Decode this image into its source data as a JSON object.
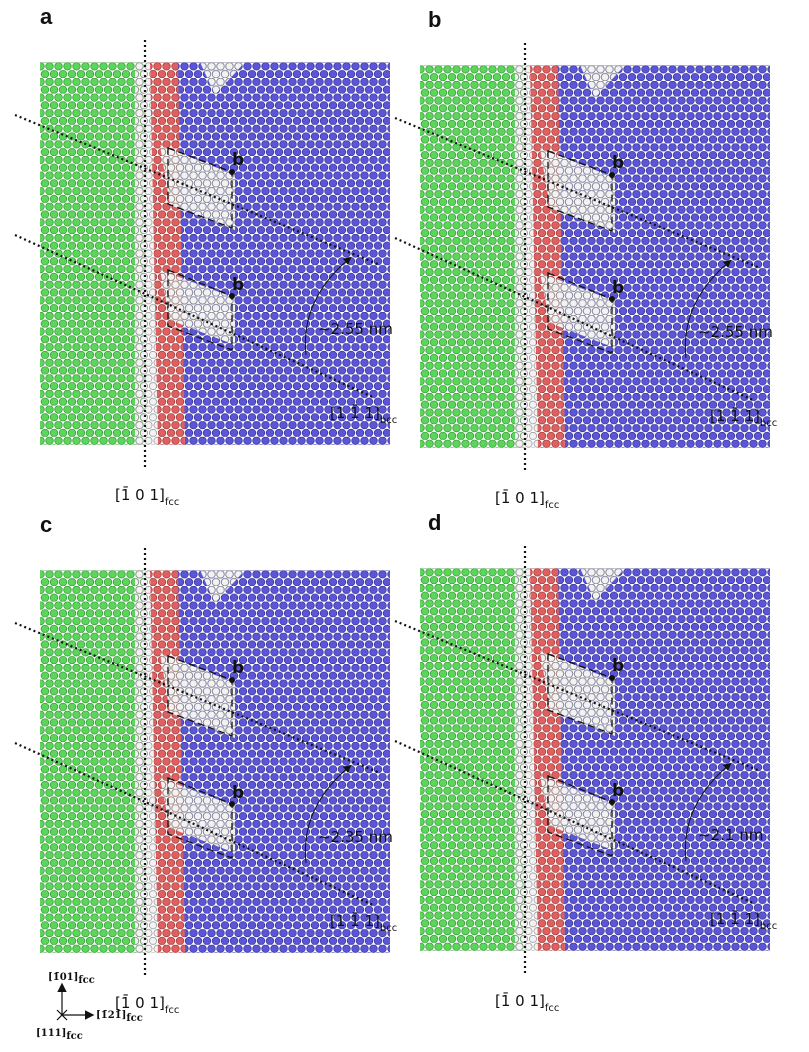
{
  "panels": [
    {
      "label": "a",
      "burgers": [
        "b",
        "b"
      ],
      "distance": "~2.55 nm",
      "direction_bcc": {
        "text": "[1 1̄ 1]",
        "sub": "bcc"
      },
      "direction_fcc": {
        "text": "[1̄ 0 1]",
        "sub": "fcc"
      }
    },
    {
      "label": "b",
      "burgers": [
        "b",
        "b"
      ],
      "distance": "~2.55 nm",
      "direction_bcc": {
        "text": "[1 1̄ 1]",
        "sub": "bcc"
      },
      "direction_fcc": {
        "text": "[1̄ 0 1]",
        "sub": "fcc"
      }
    },
    {
      "label": "c",
      "burgers": [
        "b",
        "b"
      ],
      "distance": "~2.35 nm",
      "direction_bcc": {
        "text": "[1 1̄ 1]",
        "sub": "bcc"
      },
      "direction_fcc": {
        "text": "[1̄ 0 1]",
        "sub": "fcc"
      }
    },
    {
      "label": "d",
      "burgers": [
        "b",
        "b"
      ],
      "distance": "~2.1 nm",
      "direction_bcc": {
        "text": "[1 1̄ 1]",
        "sub": "bcc"
      },
      "direction_fcc": {
        "text": "[1̄ 0 1]",
        "sub": "fcc"
      }
    }
  ],
  "axes_key": {
    "up": {
      "text": "[1̄01]",
      "sub": "fcc"
    },
    "right": {
      "text": "[1̄21̄]",
      "sub": "fcc"
    },
    "out": {
      "text": "[111]",
      "sub": "fcc"
    }
  }
}
